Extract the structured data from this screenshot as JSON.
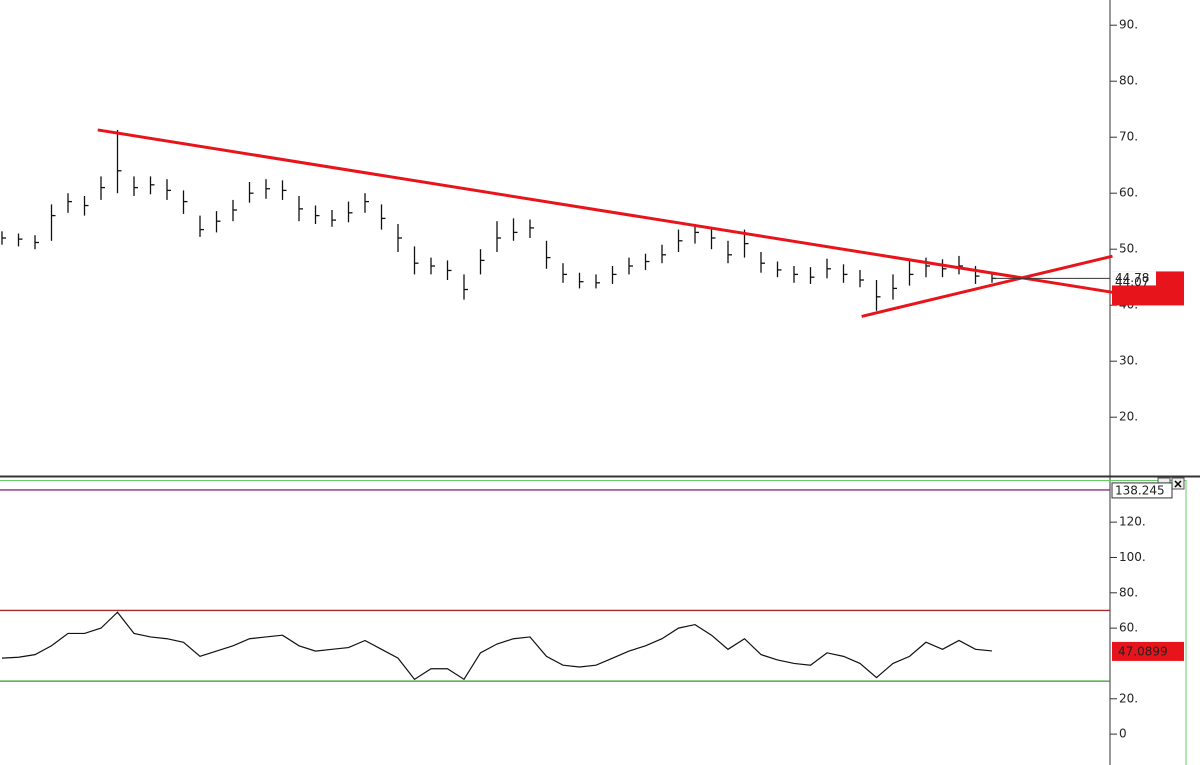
{
  "chart_data": [
    {
      "type": "ohlc",
      "close": [
        52,
        51.8,
        51.2,
        56,
        58.5,
        57.8,
        61,
        64,
        61,
        61.5,
        60.5,
        58.5,
        53.5,
        55,
        57,
        60,
        60.8,
        60.5,
        57.2,
        56,
        55.2,
        56.5,
        58.5,
        55.5,
        52,
        47.5,
        47,
        46.2,
        42.8,
        48,
        52,
        53,
        53.8,
        48.5,
        45.5,
        44.2,
        44,
        45.5,
        47,
        47.8,
        49,
        51.5,
        53,
        52,
        49,
        51,
        47.5,
        46.3,
        45.5,
        45,
        46.5,
        45.5,
        44.5,
        41.5,
        43,
        45.5,
        47,
        46.5,
        47,
        45.2,
        44.78
      ],
      "high": [
        53.2,
        52.8,
        52.5,
        58,
        60,
        59.5,
        63,
        71.3,
        63,
        63,
        62.5,
        60.5,
        56,
        56.8,
        58.8,
        62,
        62.5,
        62.3,
        59.5,
        57.8,
        57,
        58.5,
        60,
        58,
        54.5,
        50.5,
        48.5,
        48,
        45.5,
        50,
        55,
        55.5,
        55.3,
        51.5,
        47.5,
        45.8,
        45.5,
        47,
        48.5,
        49.2,
        50.8,
        53.5,
        54.5,
        54,
        51.5,
        53.5,
        49.5,
        47.8,
        47,
        46.8,
        48.3,
        47.3,
        46.3,
        44.5,
        45.5,
        48,
        48.5,
        48.2,
        48.8,
        47,
        45.5
      ],
      "low": [
        50.8,
        50.5,
        50,
        51.5,
        56.5,
        56,
        58.8,
        60,
        59.5,
        59.8,
        58.8,
        56.3,
        52.2,
        53,
        55,
        58.3,
        59,
        58.8,
        55,
        54.5,
        54,
        54.8,
        56.5,
        53.5,
        49.5,
        45.5,
        45.5,
        44.5,
        41,
        45.5,
        49.5,
        51.5,
        52,
        46.5,
        44,
        43,
        43,
        43.8,
        45.5,
        46.3,
        47.5,
        49.5,
        51,
        50,
        47.5,
        48.5,
        45.8,
        45,
        44,
        43.8,
        44.8,
        44,
        43.2,
        39,
        41,
        43.5,
        45,
        45,
        45.5,
        43.8,
        44
      ],
      "color": "#111111",
      "ylim": [
        9.5,
        94.5
      ],
      "yticks": [
        {
          "value": 90,
          "label": "90."
        },
        {
          "value": 80,
          "label": "80."
        },
        {
          "value": 70,
          "label": "70."
        },
        {
          "value": 60,
          "label": "60."
        },
        {
          "value": 50,
          "label": "50."
        },
        {
          "value": 40,
          "label": "40."
        },
        {
          "value": 30,
          "label": "30."
        },
        {
          "value": 20,
          "label": "20."
        }
      ],
      "trendlines": [
        {
          "x": [
            5.8,
            67.3
          ],
          "y": [
            71.3,
            42.3
          ]
        },
        {
          "x": [
            52.1,
            67.3
          ],
          "y": [
            38,
            48.75
          ]
        }
      ],
      "trendline_color": "#e8141b",
      "marker_label": 44.07
    },
    {
      "type": "line",
      "values": [
        43,
        43.5,
        45,
        50,
        57,
        57,
        60,
        69,
        57,
        55,
        54,
        52,
        44,
        47,
        50,
        54,
        55,
        56,
        50,
        47,
        48,
        49,
        53,
        48,
        43,
        31,
        37,
        37,
        31,
        46,
        51,
        54,
        55,
        44,
        39,
        38,
        39,
        43,
        47,
        50,
        54,
        60,
        62,
        56,
        48,
        54,
        45,
        42,
        40,
        39,
        46,
        44,
        40,
        32,
        40,
        44,
        52,
        48,
        53,
        48,
        47.0899
      ],
      "color": "#111111",
      "ylim": [
        -17.5,
        145
      ],
      "yticks": [
        {
          "value": 120,
          "label": "120."
        },
        {
          "value": 100,
          "label": "100."
        },
        {
          "value": 80,
          "label": "80."
        },
        {
          "value": 60,
          "label": "60."
        },
        {
          "value": 20,
          "label": "20."
        },
        0
      ],
      "levels": [
        138.245,
        70,
        30
      ],
      "level_colors": [
        "#8b2a8b",
        "#a52a2a",
        "#2e9a2e"
      ]
    }
  ]
}
